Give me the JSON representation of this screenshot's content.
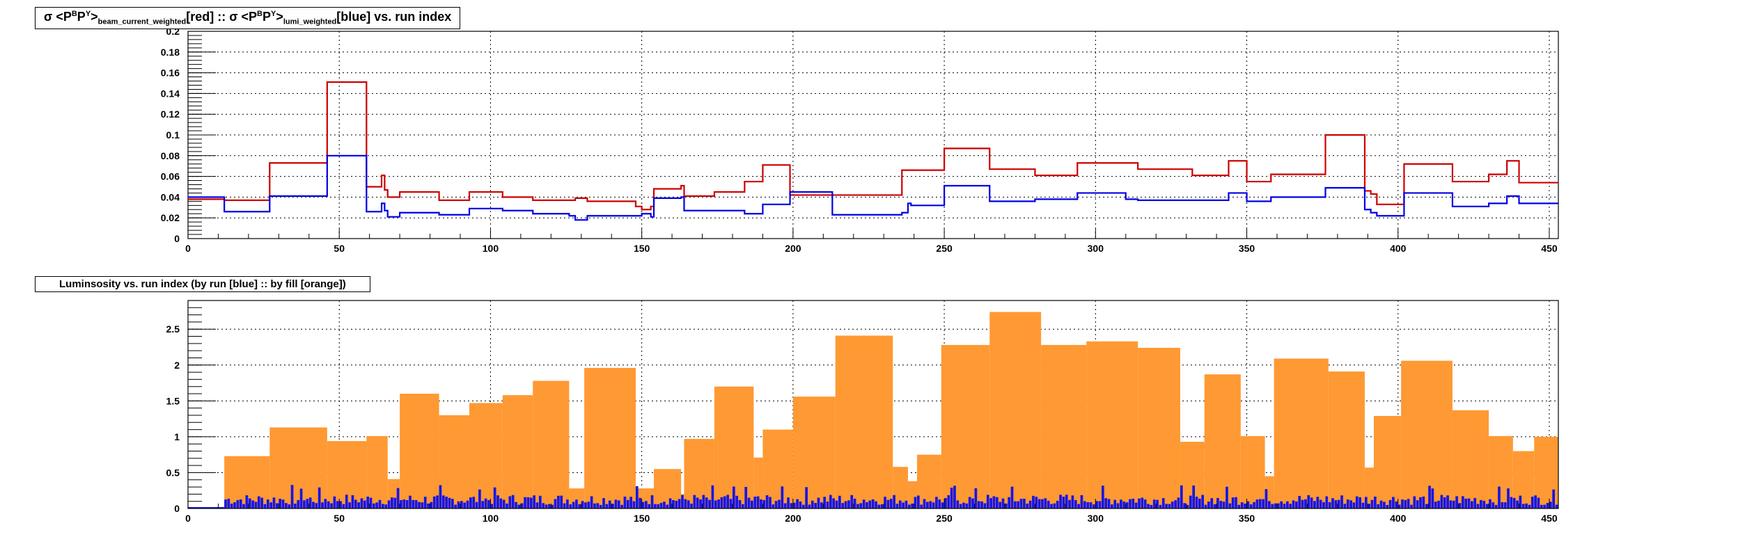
{
  "colors": {
    "red": "#cc0000",
    "blue": "#0000e6",
    "orange": "#ff9933",
    "blue_fill": "#1515e6"
  },
  "chart_data": [
    {
      "type": "line",
      "title_parts": [
        "σ <P",
        "B",
        "P",
        "Y",
        ">",
        "beam_current_weighted",
        "[red] :: σ <P",
        "B",
        "P",
        "Y",
        ">",
        "lumi_weighted",
        "[blue] vs. run index"
      ],
      "xlim": [
        0,
        453
      ],
      "ylim": [
        0,
        0.2
      ],
      "x_ticks": [
        "0",
        "50",
        "100",
        "150",
        "200",
        "250",
        "300",
        "350",
        "400",
        "450"
      ],
      "y_ticks": [
        "0",
        "0.02",
        "0.04",
        "0.06",
        "0.08",
        "0.1",
        "0.12",
        "0.14",
        "0.16",
        "0.18",
        "0.2"
      ],
      "grid": true,
      "series": [
        {
          "name": "red",
          "x": [
            0,
            12,
            27,
            46,
            59,
            64,
            65,
            66,
            70,
            83,
            93,
            104,
            114,
            126,
            128,
            132,
            148,
            150,
            153,
            154,
            163,
            164,
            174,
            184,
            190,
            199,
            213,
            236,
            238,
            239,
            250,
            265,
            280,
            294,
            310,
            314,
            332,
            344,
            350,
            358,
            376,
            389,
            391,
            393,
            402,
            418,
            430,
            436,
            440,
            453
          ],
          "y": [
            0.038,
            0.037,
            0.073,
            0.151,
            0.05,
            0.061,
            0.047,
            0.04,
            0.045,
            0.037,
            0.045,
            0.04,
            0.037,
            0.037,
            0.039,
            0.036,
            0.031,
            0.028,
            0.031,
            0.048,
            0.051,
            0.041,
            0.045,
            0.055,
            0.071,
            0.042,
            0.042,
            0.066,
            0.066,
            0.066,
            0.087,
            0.067,
            0.061,
            0.073,
            0.073,
            0.067,
            0.061,
            0.075,
            0.055,
            0.062,
            0.1,
            0.046,
            0.043,
            0.033,
            0.072,
            0.055,
            0.062,
            0.075,
            0.054,
            0.057
          ]
        },
        {
          "name": "blue",
          "x": [
            0,
            12,
            27,
            46,
            59,
            64,
            65,
            66,
            70,
            83,
            93,
            104,
            114,
            126,
            128,
            132,
            148,
            150,
            153,
            154,
            163,
            164,
            174,
            184,
            190,
            199,
            213,
            236,
            238,
            239,
            250,
            265,
            280,
            294,
            310,
            314,
            332,
            344,
            350,
            358,
            376,
            389,
            391,
            393,
            402,
            418,
            430,
            436,
            440,
            453
          ],
          "y": [
            0.04,
            0.026,
            0.041,
            0.08,
            0.026,
            0.034,
            0.027,
            0.021,
            0.025,
            0.023,
            0.029,
            0.027,
            0.024,
            0.022,
            0.018,
            0.022,
            0.022,
            0.024,
            0.021,
            0.039,
            0.04,
            0.027,
            0.027,
            0.024,
            0.033,
            0.045,
            0.023,
            0.025,
            0.034,
            0.032,
            0.051,
            0.036,
            0.038,
            0.044,
            0.038,
            0.037,
            0.037,
            0.044,
            0.036,
            0.04,
            0.049,
            0.028,
            0.025,
            0.022,
            0.044,
            0.031,
            0.034,
            0.041,
            0.034,
            0.032
          ]
        }
      ]
    },
    {
      "type": "bar",
      "title": "Luminsosity vs. run index (by run [blue] :: by fill [orange])",
      "xlim": [
        0,
        453
      ],
      "ylim": [
        0,
        2.9
      ],
      "x_ticks": [
        "0",
        "50",
        "100",
        "150",
        "200",
        "250",
        "300",
        "350",
        "400",
        "450"
      ],
      "y_ticks": [
        "0",
        "0.5",
        "1",
        "1.5",
        "2",
        "2.5"
      ],
      "grid": true,
      "series": [
        {
          "name": "orange",
          "bars": [
            [
              12,
              27,
              0.73
            ],
            [
              27,
              46,
              1.13
            ],
            [
              46,
              59,
              0.94
            ],
            [
              59,
              66,
              1.01
            ],
            [
              66,
              70,
              0.41
            ],
            [
              70,
              83,
              1.6
            ],
            [
              83,
              93,
              1.3
            ],
            [
              93,
              104,
              1.47
            ],
            [
              104,
              114,
              1.58
            ],
            [
              114,
              126,
              1.78
            ],
            [
              126,
              131,
              0.28
            ],
            [
              131,
              148,
              1.96
            ],
            [
              148,
              154,
              0.28
            ],
            [
              154,
              163,
              0.55
            ],
            [
              163,
              164,
              0.2
            ],
            [
              164,
              174,
              0.97
            ],
            [
              174,
              187,
              1.7
            ],
            [
              187,
              190,
              0.71
            ],
            [
              190,
              200,
              1.1
            ],
            [
              200,
              214,
              1.56
            ],
            [
              214,
              233,
              2.41
            ],
            [
              233,
              238,
              0.58
            ],
            [
              238,
              241,
              0.38
            ],
            [
              241,
              249,
              0.75
            ],
            [
              249,
              265,
              2.28
            ],
            [
              265,
              282,
              2.74
            ],
            [
              282,
              297,
              2.28
            ],
            [
              297,
              314,
              2.33
            ],
            [
              314,
              328,
              2.24
            ],
            [
              328,
              336,
              0.93
            ],
            [
              336,
              348,
              1.87
            ],
            [
              348,
              356,
              1.01
            ],
            [
              356,
              359,
              0.45
            ],
            [
              359,
              377,
              2.09
            ],
            [
              377,
              389,
              1.91
            ],
            [
              389,
              392,
              0.57
            ],
            [
              392,
              401,
              1.29
            ],
            [
              401,
              418,
              2.06
            ],
            [
              418,
              430,
              1.37
            ],
            [
              430,
              438,
              1.01
            ],
            [
              438,
              445,
              0.8
            ],
            [
              445,
              453,
              1.0
            ]
          ]
        },
        {
          "name": "blue",
          "x_start": 12,
          "x_end": 453,
          "bin_width": 1,
          "y_mean": 0.14,
          "y_max": 0.33
        }
      ]
    }
  ]
}
